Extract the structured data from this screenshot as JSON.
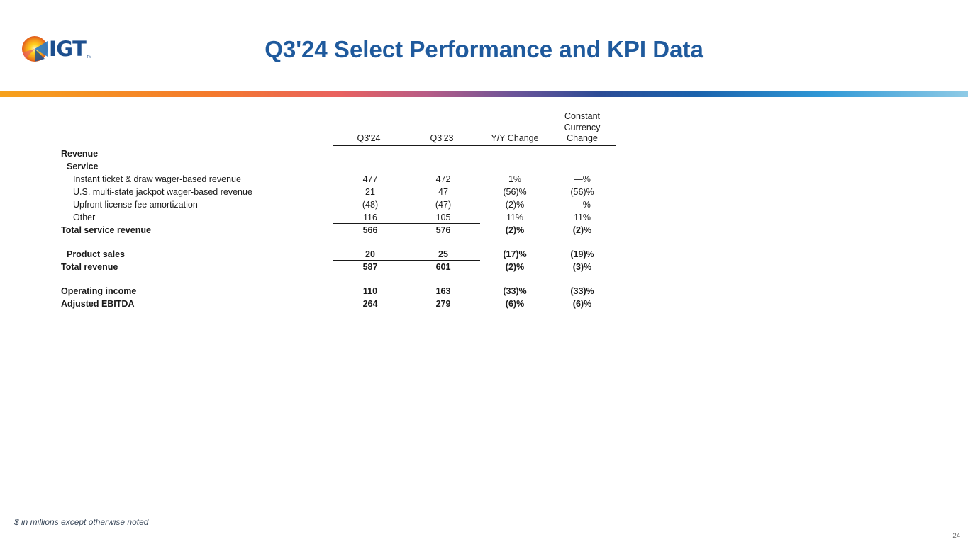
{
  "header": {
    "logo_text": "IGT",
    "logo_tm": "TM",
    "title": "Q3'24 Select Performance and KPI Data"
  },
  "table": {
    "columns": [
      "Q3'24",
      "Q3'23",
      "Y/Y Change",
      "Constant\nCurrency\nChange"
    ],
    "rows": [
      {
        "label": "Revenue",
        "cells": [
          "",
          "",
          "",
          ""
        ]
      },
      {
        "label": "Service",
        "cells": [
          "",
          "",
          "",
          ""
        ]
      },
      {
        "label": "Instant ticket & draw wager-based revenue",
        "cells": [
          "477",
          "472",
          "1%",
          "—%"
        ]
      },
      {
        "label": "U.S. multi-state jackpot wager-based revenue",
        "cells": [
          "21",
          "47",
          "(56)%",
          "(56)%"
        ]
      },
      {
        "label": "Upfront license fee amortization",
        "cells": [
          "(48)",
          "(47)",
          "(2)%",
          "—%"
        ]
      },
      {
        "label": "Other",
        "cells": [
          "116",
          "105",
          "11%",
          "11%"
        ]
      },
      {
        "label": "Total service revenue",
        "cells": [
          "566",
          "576",
          "(2)%",
          "(2)%"
        ]
      },
      {
        "label": "Product sales",
        "cells": [
          "20",
          "25",
          "(17)%",
          "(19)%"
        ]
      },
      {
        "label": "Total revenue",
        "cells": [
          "587",
          "601",
          "(2)%",
          "(3)%"
        ]
      },
      {
        "label": "Operating income",
        "cells": [
          "110",
          "163",
          "(33)%",
          "(33)%"
        ]
      },
      {
        "label": "Adjusted EBITDA",
        "cells": [
          "264",
          "279",
          "(6)%",
          "(6)%"
        ]
      }
    ]
  },
  "footnote": "$ in millions except otherwise noted",
  "page_number": "24",
  "colors": {
    "title": "#1f5a9d",
    "logo": "#1d4f8e"
  }
}
